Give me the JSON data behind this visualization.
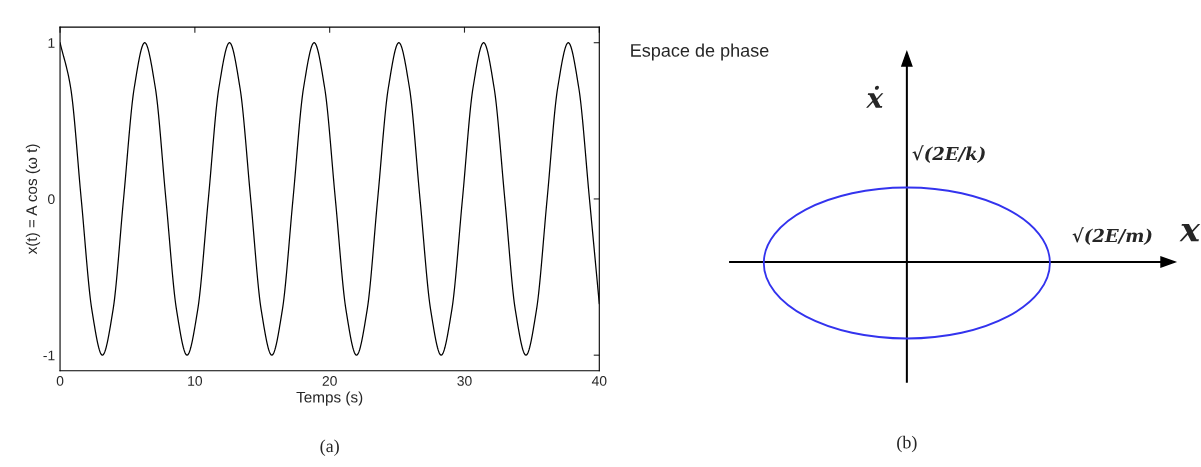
{
  "chart_data": [
    {
      "type": "line",
      "xlabel": "Temps (s)",
      "ylabel": "x(t) = A cos (ω t)",
      "annotations": [
        "(a)"
      ],
      "series": [
        {
          "color": "#000000",
          "x": [
            0,
            0.79,
            1.57,
            2.36,
            3.14,
            3.93,
            4.71,
            5.5,
            6.28,
            7.07,
            7.85,
            8.64,
            9.42,
            10.21,
            11,
            11.78,
            12.57,
            13.35,
            14.14,
            14.92,
            15.71,
            16.49,
            17.28,
            18.06,
            18.85,
            19.63,
            20.42,
            21.21,
            21.99,
            22.78,
            23.56,
            24.35,
            25.13,
            25.92,
            26.7,
            27.49,
            28.27,
            29.06,
            29.85,
            30.63,
            31.42,
            32.2,
            32.99,
            33.77,
            34.56,
            35.34,
            36.13,
            36.91,
            37.7,
            38.48,
            39.27,
            40
          ],
          "values": [
            1,
            0.71,
            0,
            -0.71,
            -1,
            -0.71,
            0,
            0.71,
            1,
            0.71,
            0,
            -0.71,
            -1,
            -0.71,
            0,
            0.71,
            1,
            0.71,
            0,
            -0.71,
            -1,
            -0.71,
            0,
            0.71,
            1,
            0.71,
            0,
            -0.71,
            -1,
            -0.71,
            0,
            0.71,
            1,
            0.71,
            0,
            -0.71,
            -1,
            -0.71,
            0,
            0.71,
            1,
            0.71,
            0,
            -0.71,
            -1,
            -0.71,
            0,
            0.71,
            1,
            0.71,
            0,
            -0.67
          ]
        }
      ],
      "xlim": [
        0,
        40
      ],
      "ylim": [
        -1.1,
        1.1
      ],
      "xticks": [
        0,
        10,
        20,
        30,
        40
      ],
      "yticks": [
        -1,
        0,
        1
      ],
      "grid": false,
      "legend": false
    },
    {
      "type": "other",
      "title": "Espace de phase",
      "xlabel": "x",
      "ylabel": "ẋ",
      "annotations": [
        "√(2E/k)",
        "√(2E/m)",
        "(b)"
      ]
    }
  ]
}
